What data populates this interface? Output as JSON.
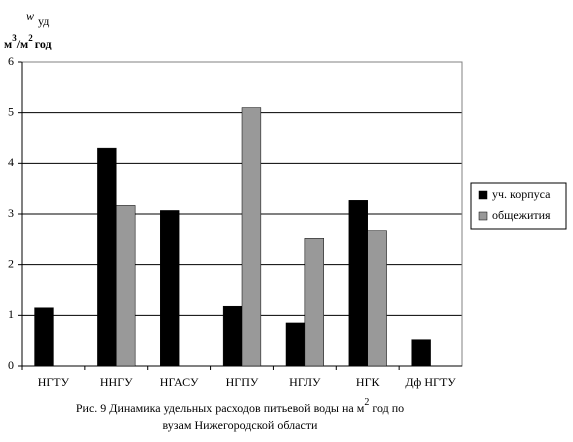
{
  "chart_data": {
    "type": "bar",
    "y_label": {
      "symbol": "w",
      "subscript": "уд",
      "unit": [
        "м",
        "3",
        "/м",
        "2",
        "год"
      ]
    },
    "categories": [
      "НГТУ",
      "ННГУ",
      "НГАСУ",
      "НГПУ",
      "НГЛУ",
      "НГК",
      "Дф НГТУ"
    ],
    "series": [
      {
        "name": "уч. корпуса",
        "color": "#000000",
        "values": [
          1.15,
          4.3,
          3.07,
          1.18,
          0.85,
          3.27,
          0.52
        ]
      },
      {
        "name": "общежития",
        "color": "#999999",
        "values": [
          null,
          3.17,
          null,
          5.1,
          2.52,
          2.67,
          null
        ]
      }
    ],
    "ylim": [
      0,
      6
    ],
    "yticks": [
      0,
      1,
      2,
      3,
      4,
      5,
      6
    ],
    "grid": true,
    "legend": "right",
    "caption": {
      "line1": [
        "Рис. 9 Динамика удельных расходов питьевой воды на м",
        "2",
        " год по"
      ],
      "line2": "вузам Нижегородской области"
    }
  }
}
